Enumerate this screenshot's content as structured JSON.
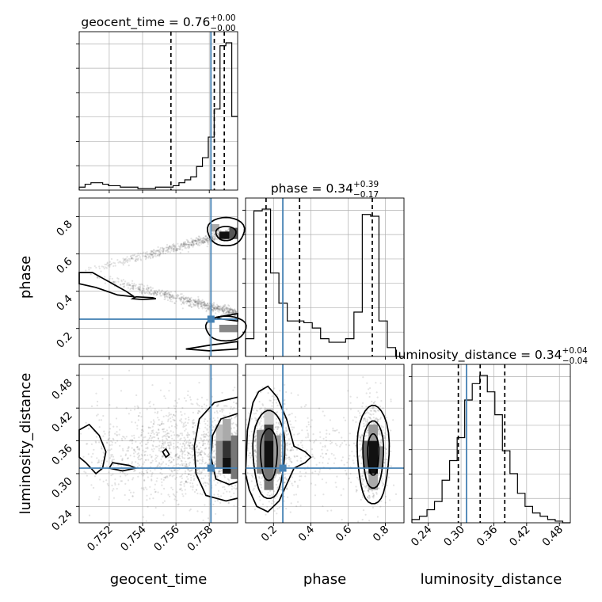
{
  "chart_data": {
    "type": "corner",
    "parameters": [
      "geocent_time",
      "phase",
      "luminosity_distance"
    ],
    "titles": {
      "geocent_time": {
        "label": "geocent_time",
        "median": "0.76",
        "plus": "+0.00",
        "minus": "−0.00"
      },
      "phase": {
        "label": "phase",
        "median": "0.34",
        "plus": "+0.39",
        "minus": "−0.17"
      },
      "luminosity_distance": {
        "label": "luminosity_distance",
        "median": "0.34",
        "plus": "+0.04",
        "minus": "−0.04"
      }
    },
    "truths": {
      "geocent_time": 0.7581,
      "phase": 0.25,
      "luminosity_distance": 0.31
    },
    "ranges": {
      "geocent_time": [
        0.7502,
        0.7597
      ],
      "phase": [
        0.05,
        0.9
      ],
      "luminosity_distance": [
        0.21,
        0.5
      ]
    },
    "ticks": {
      "geocent_time": [
        "0.752",
        "0.754",
        "0.756",
        "0.758"
      ],
      "phase": [
        "0.2",
        "0.4",
        "0.6",
        "0.8"
      ],
      "luminosity_distance": [
        "0.24",
        "0.30",
        "0.36",
        "0.42",
        "0.48"
      ]
    },
    "quantiles": {
      "geocent_time": [
        0.7557,
        0.7583,
        0.7589
      ],
      "phase": [
        0.16,
        0.34,
        0.73
      ],
      "luminosity_distance": [
        0.295,
        0.335,
        0.38
      ]
    },
    "histograms": {
      "geocent_time": {
        "edges_range": [
          0.7502,
          0.7597
        ],
        "counts": [
          0.02,
          0.04,
          0.05,
          0.05,
          0.04,
          0.03,
          0.03,
          0.02,
          0.02,
          0.02,
          0.01,
          0.01,
          0.01,
          0.02,
          0.02,
          0.02,
          0.03,
          0.05,
          0.07,
          0.09,
          0.16,
          0.22,
          0.36,
          0.55,
          0.98,
          1.0,
          0.5
        ]
      },
      "phase": {
        "edges_range": [
          0.05,
          0.9
        ],
        "counts": [
          0.1,
          0.82,
          0.83,
          0.47,
          0.3,
          0.2,
          0.2,
          0.19,
          0.16,
          0.1,
          0.08,
          0.08,
          0.1,
          0.25,
          0.8,
          0.79,
          0.2,
          0.05,
          0.0
        ]
      },
      "luminosity_distance": {
        "edges_range": [
          0.21,
          0.5
        ],
        "counts": [
          0.02,
          0.04,
          0.08,
          0.13,
          0.26,
          0.38,
          0.52,
          0.75,
          0.85,
          0.9,
          0.8,
          0.66,
          0.44,
          0.3,
          0.18,
          0.1,
          0.06,
          0.04,
          0.02,
          0.01,
          0.0
        ]
      }
    },
    "xlabels": [
      "geocent_time",
      "phase",
      "luminosity_distance"
    ],
    "ylabels": [
      "phase",
      "luminosity_distance"
    ]
  }
}
